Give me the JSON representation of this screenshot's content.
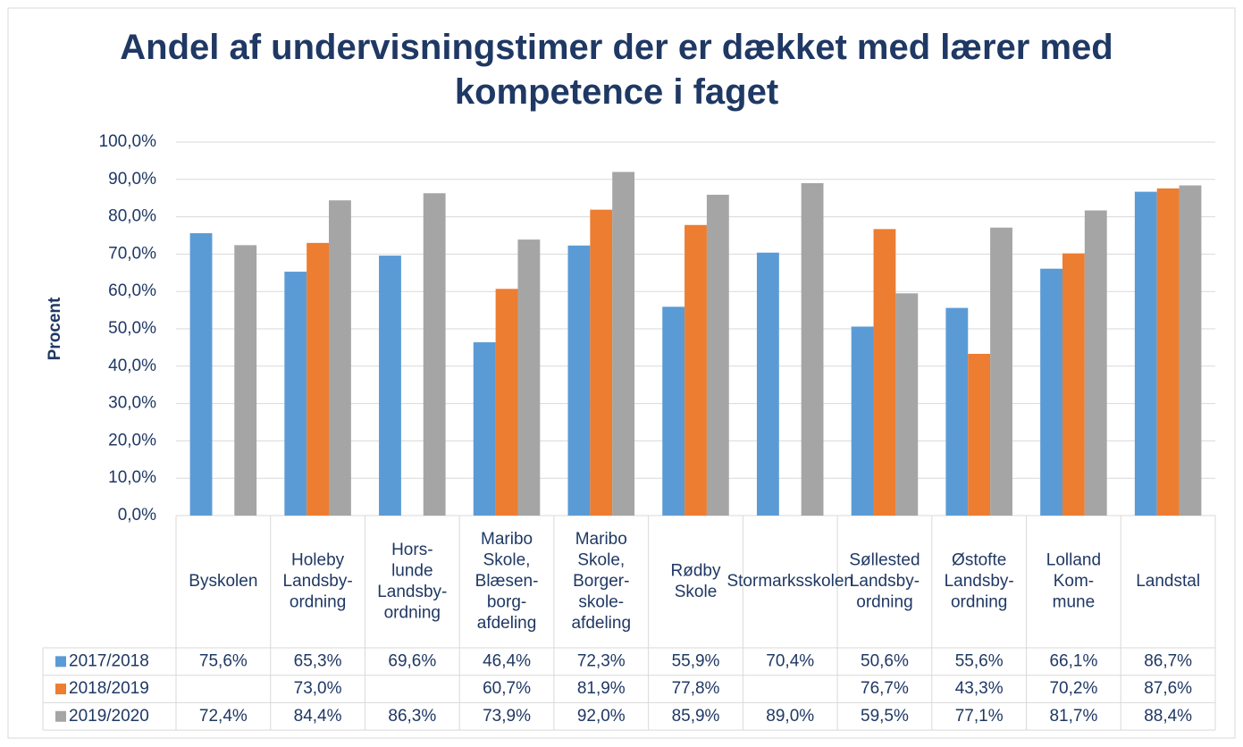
{
  "chart_data": {
    "type": "bar",
    "title": "Andel af undervisningstimer der er dækket med lærer med kompetence i faget",
    "y_label": "Procent",
    "categories": [
      [
        "Byskolen"
      ],
      [
        "Holeby",
        "Landsby-",
        "ordning"
      ],
      [
        "Hors-",
        "lunde",
        "Landsby-",
        "ordning"
      ],
      [
        "Maribo",
        "Skole,",
        "Blæsen-",
        "borg-",
        "afdeling"
      ],
      [
        "Maribo",
        "Skole,",
        "Borger-",
        "skole-",
        "afdeling"
      ],
      [
        "Rødby",
        "Skole"
      ],
      [
        "Stormarksskolen"
      ],
      [
        "Søllested",
        "Landsby-",
        "ordning"
      ],
      [
        "Østofte",
        "Landsby-",
        "ordning"
      ],
      [
        "Lolland",
        "Kom-",
        "mune"
      ],
      [
        "Landstal"
      ]
    ],
    "series": [
      {
        "name": "2017/2018",
        "color": "#5b9bd5",
        "values": [
          75.6,
          65.3,
          69.6,
          46.4,
          72.3,
          55.9,
          70.4,
          50.6,
          55.6,
          66.1,
          86.7
        ],
        "value_labels": [
          "75,6%",
          "65,3%",
          "69,6%",
          "46,4%",
          "72,3%",
          "55,9%",
          "70,4%",
          "50,6%",
          "55,6%",
          "66,1%",
          "86,7%"
        ]
      },
      {
        "name": "2018/2019",
        "color": "#ed7d31",
        "values": [
          null,
          73.0,
          null,
          60.7,
          81.9,
          77.8,
          null,
          76.7,
          43.3,
          70.2,
          87.6
        ],
        "value_labels": [
          null,
          "73,0%",
          null,
          "60,7%",
          "81,9%",
          "77,8%",
          null,
          "76,7%",
          "43,3%",
          "70,2%",
          "87,6%"
        ]
      },
      {
        "name": "2019/2020",
        "color": "#a5a5a5",
        "values": [
          72.4,
          84.4,
          86.3,
          73.9,
          92.0,
          85.9,
          89.0,
          59.5,
          77.1,
          81.7,
          88.4
        ],
        "value_labels": [
          "72,4%",
          "84,4%",
          "86,3%",
          "73,9%",
          "92,0%",
          "85,9%",
          "89,0%",
          "59,5%",
          "77,1%",
          "81,7%",
          "88,4%"
        ]
      }
    ],
    "ylim": [
      0,
      100
    ],
    "yticks": [
      {
        "value": 0,
        "label": "0,0%"
      },
      {
        "value": 10,
        "label": "10,0%"
      },
      {
        "value": 20,
        "label": "20,0%"
      },
      {
        "value": 30,
        "label": "30,0%"
      },
      {
        "value": 40,
        "label": "40,0%"
      },
      {
        "value": 50,
        "label": "50,0%"
      },
      {
        "value": 60,
        "label": "60,0%"
      },
      {
        "value": 70,
        "label": "70,0%"
      },
      {
        "value": 80,
        "label": "80,0%"
      },
      {
        "value": 90,
        "label": "90,0%"
      },
      {
        "value": 100,
        "label": "100,0%"
      }
    ],
    "grid": true
  }
}
